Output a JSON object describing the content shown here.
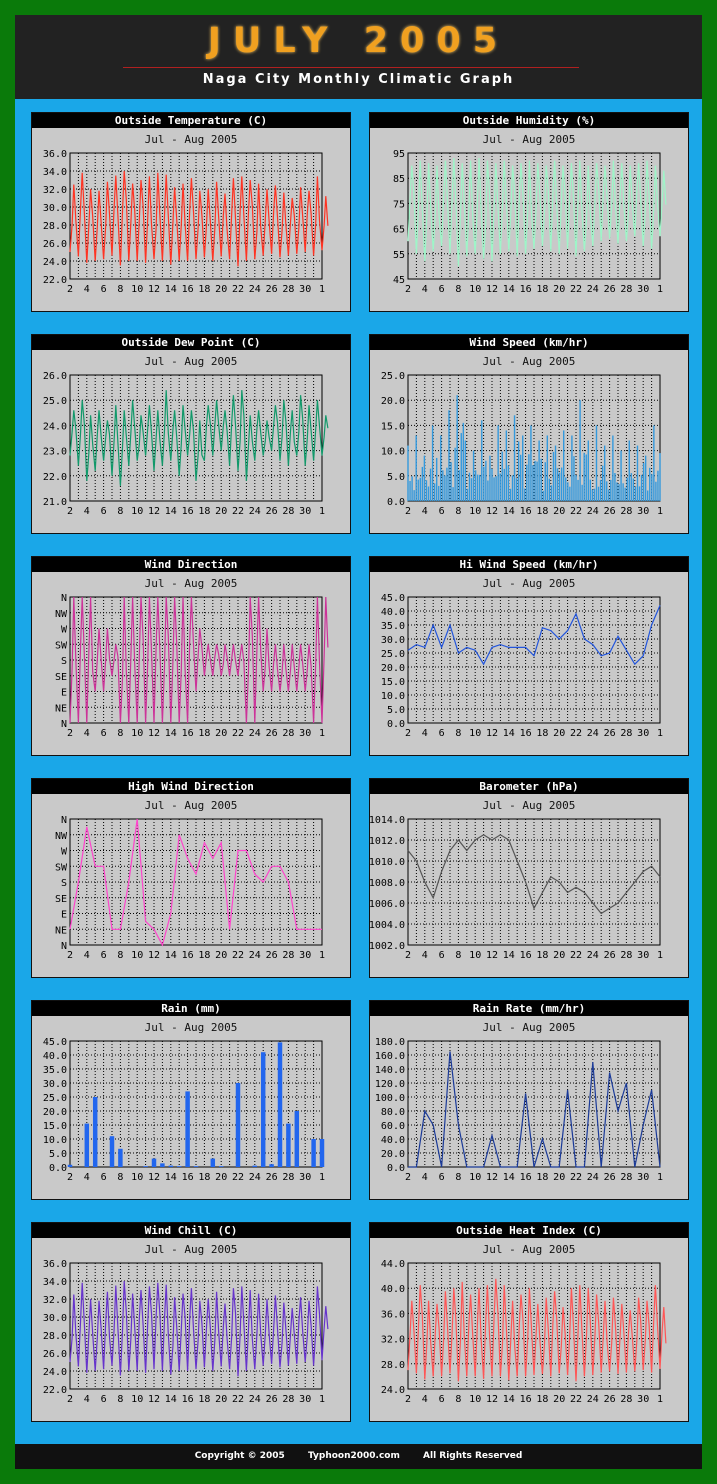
{
  "header": {
    "title": "JULY 2005",
    "subtitle": "Naga City Monthly Climatic Graph"
  },
  "footer": {
    "copyright": "Copyright © 2005",
    "site": "Typhoon2000.com",
    "rights": "All Rights Reserved"
  },
  "x_tick_labels": [
    "2",
    "4",
    "6",
    "8",
    "10",
    "12",
    "14",
    "16",
    "18",
    "20",
    "22",
    "24",
    "26",
    "28",
    "30",
    "1"
  ],
  "chart_data": [
    {
      "type": "line",
      "title": "Outside Temperature (C)",
      "subtitle": "Jul - Aug  2005",
      "color": "#ff3322",
      "ylim": [
        22,
        36
      ],
      "yticks": [
        22.0,
        24.0,
        26.0,
        28.0,
        30.0,
        32.0,
        34.0,
        36.0
      ],
      "ydec": 1,
      "x": [
        1,
        2,
        3,
        4,
        5,
        6,
        7,
        8,
        9,
        10,
        11,
        12,
        13,
        14,
        15,
        16,
        17,
        18,
        19,
        20,
        21,
        22,
        23,
        24,
        25,
        26,
        27,
        28,
        29,
        30,
        31
      ],
      "values_min": [
        25.0,
        24.5,
        23.8,
        24.0,
        24.2,
        24.6,
        23.5,
        24.0,
        24.0,
        23.8,
        24.2,
        24.0,
        23.6,
        24.0,
        24.0,
        24.2,
        24.4,
        24.0,
        24.5,
        24.2,
        23.4,
        24.0,
        24.2,
        24.6,
        24.8,
        24.4,
        24.6,
        24.8,
        25.0,
        24.6,
        25.2
      ],
      "values_max": [
        32.5,
        33.8,
        32.0,
        31.8,
        32.8,
        33.5,
        34.0,
        32.6,
        33.0,
        33.4,
        33.8,
        33.6,
        32.2,
        32.6,
        33.2,
        31.8,
        32.0,
        32.8,
        31.5,
        33.2,
        33.4,
        33.0,
        32.6,
        32.0,
        32.4,
        31.6,
        31.0,
        32.2,
        31.8,
        33.4,
        31.2
      ]
    },
    {
      "type": "line",
      "title": "Outside Humidity (%)",
      "subtitle": "Jul - Aug  2005",
      "color": "#9ef5c8",
      "ylim": [
        45,
        95
      ],
      "yticks": [
        45,
        55,
        65,
        75,
        85,
        95
      ],
      "ydec": 0,
      "x": [
        1,
        2,
        3,
        4,
        5,
        6,
        7,
        8,
        9,
        10,
        11,
        12,
        13,
        14,
        15,
        16,
        17,
        18,
        19,
        20,
        21,
        22,
        23,
        24,
        25,
        26,
        27,
        28,
        29,
        30,
        31
      ],
      "values_min": [
        60,
        55,
        52,
        56,
        58,
        55,
        50,
        54,
        55,
        53,
        52,
        55,
        56,
        54,
        55,
        57,
        58,
        56,
        55,
        57,
        54,
        56,
        58,
        60,
        61,
        59,
        60,
        62,
        58,
        57,
        62
      ],
      "values_max": [
        90,
        92,
        91,
        90,
        92,
        93,
        91,
        92,
        93,
        92,
        91,
        92,
        90,
        91,
        92,
        91,
        90,
        92,
        90,
        91,
        92,
        90,
        91,
        90,
        92,
        91,
        90,
        91,
        92,
        90,
        88
      ]
    },
    {
      "type": "line",
      "title": "Outside Dew Point (C)",
      "subtitle": "Jul - Aug  2005",
      "color": "#11996a",
      "ylim": [
        21,
        26
      ],
      "yticks": [
        21.0,
        22.0,
        23.0,
        24.0,
        25.0,
        26.0
      ],
      "ydec": 1,
      "x": [
        1,
        2,
        3,
        4,
        5,
        6,
        7,
        8,
        9,
        10,
        11,
        12,
        13,
        14,
        15,
        16,
        17,
        18,
        19,
        20,
        21,
        22,
        23,
        24,
        25,
        26,
        27,
        28,
        29,
        30,
        31
      ],
      "values_min": [
        22.8,
        22.4,
        21.8,
        22.2,
        22.6,
        22.0,
        21.6,
        22.4,
        22.6,
        22.8,
        22.2,
        22.4,
        22.6,
        22.0,
        22.8,
        21.8,
        22.6,
        22.8,
        23.0,
        22.4,
        22.2,
        21.8,
        22.6,
        22.8,
        23.0,
        22.6,
        22.4,
        22.8,
        22.4,
        22.6,
        22.8
      ],
      "values_max": [
        24.6,
        25.0,
        24.4,
        24.6,
        24.2,
        24.8,
        24.6,
        25.0,
        24.4,
        24.8,
        24.6,
        25.4,
        24.6,
        24.8,
        24.6,
        24.2,
        24.8,
        25.0,
        24.6,
        25.2,
        25.4,
        24.4,
        24.6,
        24.2,
        24.8,
        25.0,
        24.6,
        25.2,
        24.8,
        25.0,
        24.4
      ]
    },
    {
      "type": "bar-dense",
      "title": "Wind Speed (km/hr)",
      "subtitle": "Jul - Aug  2005",
      "color": "#3399dd",
      "ylim": [
        0,
        25
      ],
      "yticks": [
        0.0,
        5.0,
        10.0,
        15.0,
        20.0,
        25.0
      ],
      "ydec": 1,
      "x": [
        1,
        2,
        3,
        4,
        5,
        6,
        7,
        8,
        9,
        10,
        11,
        12,
        13,
        14,
        15,
        16,
        17,
        18,
        19,
        20,
        21,
        22,
        23,
        24,
        25,
        26,
        27,
        28,
        29,
        30,
        31
      ],
      "values_max": [
        11,
        13,
        9,
        15,
        13,
        18,
        21,
        12,
        10,
        16,
        9,
        15,
        14,
        17,
        13,
        15,
        12,
        13,
        11,
        14,
        13,
        20,
        12,
        15,
        11,
        13,
        10,
        12,
        11,
        9,
        15
      ]
    },
    {
      "type": "line",
      "title": "Wind Direction",
      "subtitle": "Jul - Aug  2005",
      "color": "#cc3399",
      "ylim": [
        0,
        8
      ],
      "ylabels": [
        "N",
        "NE",
        "E",
        "SE",
        "S",
        "SW",
        "W",
        "NW",
        "N"
      ],
      "x": [
        1,
        2,
        3,
        4,
        5,
        6,
        7,
        8,
        9,
        10,
        11,
        12,
        13,
        14,
        15,
        16,
        17,
        18,
        19,
        20,
        21,
        22,
        23,
        24,
        25,
        26,
        27,
        28,
        29,
        30,
        31
      ],
      "values_min": [
        0,
        0,
        0,
        2,
        2,
        3,
        0,
        0,
        0,
        0,
        0,
        0,
        0,
        0,
        0,
        2,
        3,
        3,
        3,
        3,
        3,
        0,
        0,
        2,
        2,
        2,
        2,
        2,
        2,
        0,
        0
      ],
      "values_max": [
        8,
        8,
        8,
        6,
        6,
        5,
        8,
        8,
        8,
        8,
        8,
        8,
        8,
        8,
        8,
        6,
        5,
        5,
        5,
        5,
        5,
        8,
        8,
        6,
        5,
        5,
        5,
        5,
        5,
        8,
        8
      ]
    },
    {
      "type": "line",
      "title": "Hi Wind Speed (km/hr)",
      "subtitle": "Jul - Aug  2005",
      "color": "#2255dd",
      "ylim": [
        0,
        45
      ],
      "yticks": [
        0.0,
        5.0,
        10.0,
        15.0,
        20.0,
        25.0,
        30.0,
        35.0,
        40.0,
        45.0
      ],
      "ydec": 1,
      "x": [
        1,
        2,
        3,
        4,
        5,
        6,
        7,
        8,
        9,
        10,
        11,
        12,
        13,
        14,
        15,
        16,
        17,
        18,
        19,
        20,
        21,
        22,
        23,
        24,
        25,
        26,
        27,
        28,
        29,
        30,
        31
      ],
      "values": [
        26,
        28,
        27,
        35,
        27,
        35,
        25,
        27,
        26,
        21,
        27,
        28,
        27,
        27,
        27,
        24,
        34,
        33,
        30,
        33,
        39,
        30,
        28,
        24,
        25,
        31,
        26,
        21,
        24,
        35,
        42
      ]
    },
    {
      "type": "line",
      "title": "High Wind Direction",
      "subtitle": "Jul - Aug  2005",
      "color": "#ff44cc",
      "ylim": [
        0,
        8
      ],
      "ylabels": [
        "N",
        "NE",
        "E",
        "SE",
        "S",
        "SW",
        "W",
        "NW",
        "N"
      ],
      "x": [
        1,
        2,
        3,
        4,
        5,
        6,
        7,
        8,
        9,
        10,
        11,
        12,
        13,
        14,
        15,
        16,
        17,
        18,
        19,
        20,
        21,
        22,
        23,
        24,
        25,
        26,
        27,
        28,
        29,
        30,
        31
      ],
      "values": [
        1,
        4,
        7.5,
        5,
        5,
        1,
        1,
        4,
        8,
        1.5,
        1,
        0,
        2,
        7,
        5.5,
        4.5,
        6.5,
        5.5,
        6.5,
        1,
        6,
        6,
        4.5,
        4,
        5,
        5,
        4,
        1,
        1,
        1,
        1
      ]
    },
    {
      "type": "line",
      "title": "Barometer (hPa)",
      "subtitle": "Jul - Aug  2005",
      "color": "#555555",
      "ylim": [
        1002,
        1014
      ],
      "yticks": [
        1002.0,
        1004.0,
        1006.0,
        1008.0,
        1010.0,
        1012.0,
        1014.0
      ],
      "ydec": 1,
      "x": [
        1,
        2,
        3,
        4,
        5,
        6,
        7,
        8,
        9,
        10,
        11,
        12,
        13,
        14,
        15,
        16,
        17,
        18,
        19,
        20,
        21,
        22,
        23,
        24,
        25,
        26,
        27,
        28,
        29,
        30,
        31
      ],
      "values": [
        1011.0,
        1010.0,
        1008.0,
        1006.5,
        1009.0,
        1011.0,
        1012.0,
        1011.0,
        1012.0,
        1012.5,
        1012.0,
        1012.5,
        1012.0,
        1010.0,
        1008.0,
        1005.5,
        1007.0,
        1008.5,
        1008.0,
        1007.0,
        1007.5,
        1007.0,
        1006.0,
        1005.0,
        1005.5,
        1006.0,
        1007.0,
        1008.0,
        1009.0,
        1009.5,
        1008.5
      ]
    },
    {
      "type": "bar",
      "title": "Rain (mm)",
      "subtitle": "Jul - Aug  2005",
      "color": "#2266ee",
      "ylim": [
        0,
        45
      ],
      "yticks": [
        0.0,
        5.0,
        10.0,
        15.0,
        20.0,
        25.0,
        30.0,
        35.0,
        40.0,
        45.0
      ],
      "ydec": 1,
      "x": [
        1,
        2,
        3,
        4,
        5,
        6,
        7,
        8,
        9,
        10,
        11,
        12,
        13,
        14,
        15,
        16,
        17,
        18,
        19,
        20,
        21,
        22,
        23,
        24,
        25,
        26,
        27,
        28,
        29,
        30,
        31
      ],
      "values": [
        0.8,
        0,
        15.5,
        25.0,
        0,
        11.0,
        6.5,
        0,
        0,
        0.3,
        3.0,
        1.3,
        0.5,
        0.3,
        27.0,
        0.3,
        0,
        3.0,
        0.3,
        0,
        30.0,
        0,
        0.5,
        41.0,
        1.0,
        44.5,
        15.5,
        20.0,
        0,
        10.0,
        10.0
      ]
    },
    {
      "type": "line",
      "title": "Rain Rate (mm/hr)",
      "subtitle": "Jul - Aug  2005",
      "color": "#1a3a99",
      "ylim": [
        0,
        180
      ],
      "yticks": [
        0.0,
        20.0,
        40.0,
        60.0,
        80.0,
        100.0,
        120.0,
        140.0,
        160.0,
        180.0
      ],
      "ydec": 1,
      "x": [
        1,
        2,
        3,
        4,
        5,
        6,
        7,
        8,
        9,
        10,
        11,
        12,
        13,
        14,
        15,
        16,
        17,
        18,
        19,
        20,
        21,
        22,
        23,
        24,
        25,
        26,
        27,
        28,
        29,
        30,
        31
      ],
      "values": [
        0,
        0,
        80,
        60,
        0,
        165,
        60,
        0,
        0,
        0,
        45,
        0,
        0,
        0,
        105,
        0,
        40,
        0,
        0,
        110,
        0,
        0,
        150,
        0,
        135,
        80,
        120,
        0,
        60,
        110,
        0
      ]
    },
    {
      "type": "line",
      "title": "Wind Chill (C)",
      "subtitle": "Jul - Aug  2005",
      "color": "#6633cc",
      "ylim": [
        22,
        36
      ],
      "yticks": [
        22.0,
        24.0,
        26.0,
        28.0,
        30.0,
        32.0,
        34.0,
        36.0
      ],
      "ydec": 1,
      "x": [
        1,
        2,
        3,
        4,
        5,
        6,
        7,
        8,
        9,
        10,
        11,
        12,
        13,
        14,
        15,
        16,
        17,
        18,
        19,
        20,
        21,
        22,
        23,
        24,
        25,
        26,
        27,
        28,
        29,
        30,
        31
      ],
      "values_min": [
        25.0,
        24.5,
        23.8,
        24.0,
        24.2,
        24.6,
        23.5,
        24.0,
        24.0,
        23.8,
        24.2,
        24.0,
        23.6,
        24.0,
        24.0,
        24.2,
        24.4,
        24.0,
        24.5,
        24.2,
        23.4,
        24.0,
        24.2,
        24.6,
        24.8,
        24.4,
        24.6,
        24.8,
        25.0,
        24.6,
        25.2
      ],
      "values_max": [
        32.5,
        33.8,
        32.0,
        31.8,
        32.8,
        33.5,
        34.0,
        32.6,
        33.0,
        33.4,
        33.8,
        33.6,
        32.2,
        32.6,
        33.2,
        31.8,
        32.0,
        32.8,
        31.5,
        33.2,
        33.4,
        33.0,
        32.6,
        32.0,
        32.4,
        31.6,
        31.0,
        32.2,
        31.8,
        33.4,
        31.2
      ]
    },
    {
      "type": "line",
      "title": "Outside Heat Index (C)",
      "subtitle": "Jul - Aug  2005",
      "color": "#ff5555",
      "ylim": [
        24,
        44
      ],
      "yticks": [
        24.0,
        28.0,
        32.0,
        36.0,
        40.0,
        44.0
      ],
      "ydec": 1,
      "x": [
        1,
        2,
        3,
        4,
        5,
        6,
        7,
        8,
        9,
        10,
        11,
        12,
        13,
        14,
        15,
        16,
        17,
        18,
        19,
        20,
        21,
        22,
        23,
        24,
        25,
        26,
        27,
        28,
        29,
        30,
        31
      ],
      "values_min": [
        27.0,
        26.5,
        25.5,
        26.0,
        26.0,
        26.5,
        25.2,
        26.0,
        26.0,
        25.6,
        26.0,
        26.0,
        25.4,
        26.0,
        26.0,
        26.2,
        26.4,
        26.0,
        26.5,
        26.2,
        25.2,
        26.0,
        26.2,
        26.6,
        26.8,
        26.4,
        26.6,
        26.8,
        27.0,
        26.6,
        27.2
      ],
      "values_max": [
        38.0,
        40.5,
        38.0,
        37.5,
        39.5,
        40.0,
        41.0,
        39.0,
        40.0,
        40.5,
        41.5,
        40.5,
        38.0,
        39.0,
        40.0,
        37.5,
        38.5,
        39.5,
        37.0,
        40.0,
        40.5,
        40.0,
        39.0,
        38.0,
        38.5,
        37.5,
        36.5,
        38.5,
        38.0,
        40.5,
        37.0
      ]
    }
  ]
}
